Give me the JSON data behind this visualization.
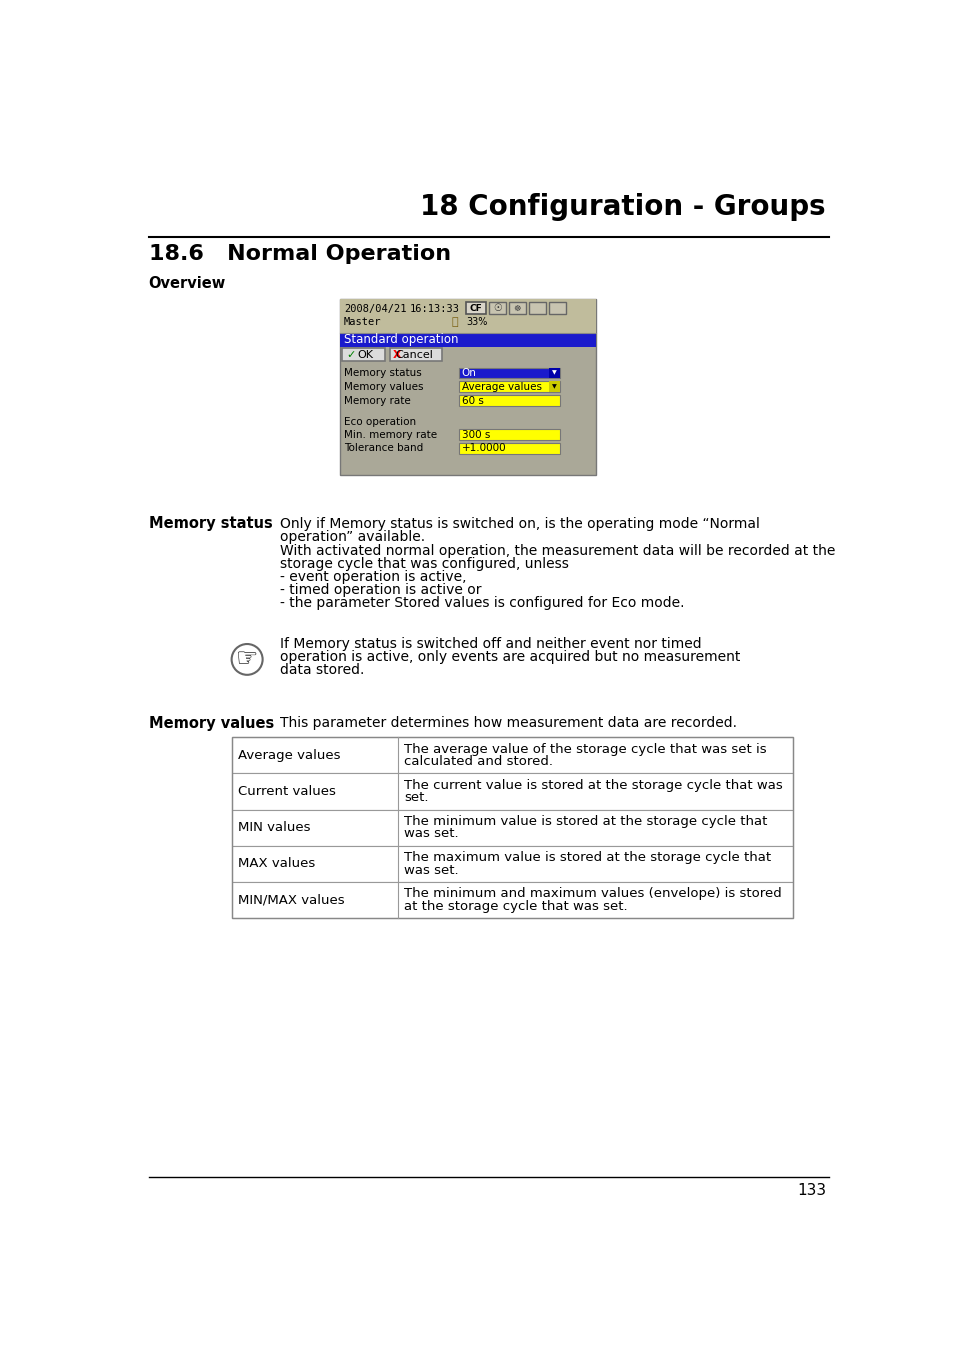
{
  "page_title": "18 Configuration - Groups",
  "section_title": "18.6   Normal Operation",
  "overview_label": "Overview",
  "memory_status_label": "Memory status",
  "memory_values_label": "Memory values",
  "memory_status_text1a": "Only if Memory status is switched on, is the operating mode “Normal",
  "memory_status_text1b": "operation” available.",
  "memory_status_text2": [
    "With activated normal operation, the measurement data will be recorded at the",
    "storage cycle that was configured, unless",
    "- event operation is active,",
    "- timed operation is active or",
    "- the parameter Stored values is configured for Eco mode."
  ],
  "note_text": [
    "If Memory status is switched off and neither event nor timed",
    "operation is active, only events are acquired but no measurement",
    "data stored."
  ],
  "memory_values_intro": "This parameter determines how measurement data are recorded.",
  "table_rows": [
    [
      "Average values",
      [
        "The average value of the storage cycle that was set is",
        "calculated and stored."
      ]
    ],
    [
      "Current values",
      [
        "The current value is stored at the storage cycle that was",
        "set."
      ]
    ],
    [
      "MIN values",
      [
        "The minimum value is stored at the storage cycle that",
        "was set."
      ]
    ],
    [
      "MAX values",
      [
        "The maximum value is stored at the storage cycle that",
        "was set."
      ]
    ],
    [
      "MIN/MAX values",
      [
        "The minimum and maximum values (envelope) is stored",
        "at the storage cycle that was set."
      ]
    ]
  ],
  "page_number": "133",
  "bg_color": "#ffffff",
  "screen_bg": "#aaa898",
  "screen_header_bg": "#c0bc9c",
  "title_bar_bg": "#1a1acc",
  "blue_field_bg": "#1a1acc",
  "blue_field_fg": "#ffffff",
  "yellow_field_bg": "#ffff00",
  "yellow_field_fg": "#000000"
}
